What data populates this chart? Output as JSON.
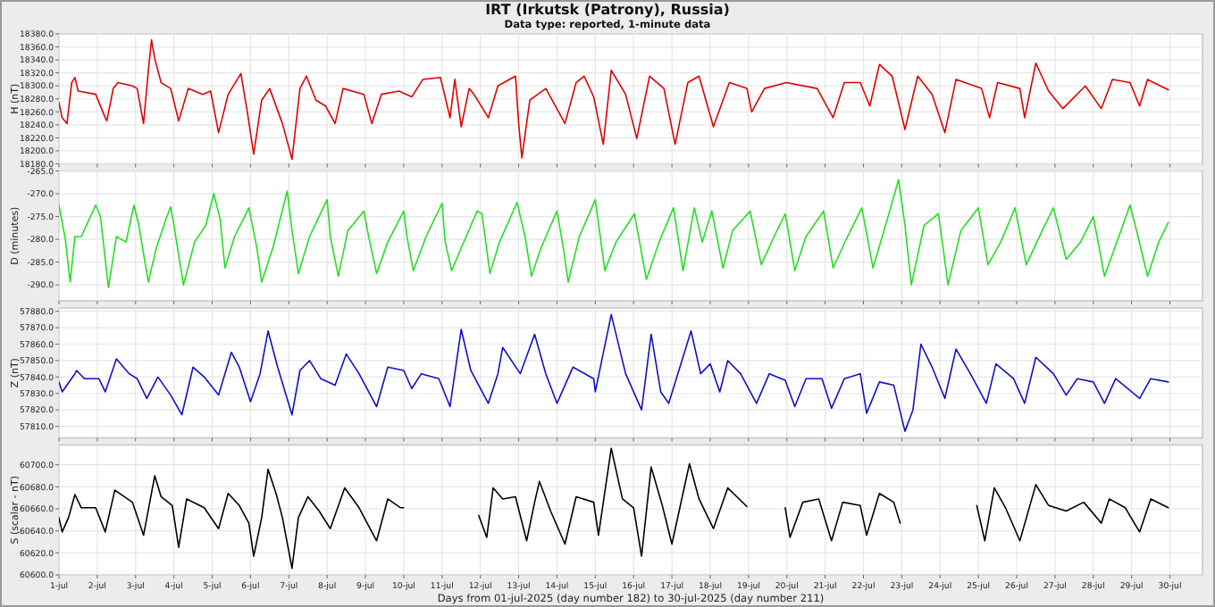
{
  "chart_data": [
    {
      "type": "line",
      "title": "IRT (Irkutsk (Patrony), Russia)",
      "subtitle": "Data type: reported, 1-minute data",
      "ylabel": "H (nT)",
      "color": "#e00000",
      "grid": true,
      "tick_labels": "y",
      "xlim": [
        "2025-07-01T00:00",
        "2025-07-30T20:24"
      ],
      "xticks": [
        {
          "value": "2025-07-01",
          "label": null
        },
        {
          "value": "2025-07-02",
          "label": null
        },
        {
          "value": "2025-07-03",
          "label": null
        },
        {
          "value": "2025-07-04",
          "label": null
        },
        {
          "value": "2025-07-05",
          "label": null
        },
        {
          "value": "2025-07-06",
          "label": null
        },
        {
          "value": "2025-07-07",
          "label": null
        },
        {
          "value": "2025-07-08",
          "label": null
        },
        {
          "value": "2025-07-09",
          "label": null
        },
        {
          "value": "2025-07-10",
          "label": null
        },
        {
          "value": "2025-07-11",
          "label": null
        },
        {
          "value": "2025-07-12",
          "label": null
        },
        {
          "value": "2025-07-13",
          "label": null
        },
        {
          "value": "2025-07-14",
          "label": null
        },
        {
          "value": "2025-07-15",
          "label": null
        },
        {
          "value": "2025-07-16",
          "label": null
        },
        {
          "value": "2025-07-17",
          "label": null
        },
        {
          "value": "2025-07-18",
          "label": null
        },
        {
          "value": "2025-07-19",
          "label": null
        },
        {
          "value": "2025-07-20",
          "label": null
        },
        {
          "value": "2025-07-21",
          "label": null
        },
        {
          "value": "2025-07-22",
          "label": null
        },
        {
          "value": "2025-07-23",
          "label": null
        },
        {
          "value": "2025-07-24",
          "label": null
        },
        {
          "value": "2025-07-25",
          "label": null
        },
        {
          "value": "2025-07-26",
          "label": null
        },
        {
          "value": "2025-07-27",
          "label": null
        },
        {
          "value": "2025-07-28",
          "label": null
        },
        {
          "value": "2025-07-29",
          "label": null
        },
        {
          "value": "2025-07-30",
          "label": null
        }
      ],
      "ylim": [
        18180,
        18380
      ],
      "yticks": [
        {
          "value": 18180,
          "label": "18180.0"
        },
        {
          "value": 18200,
          "label": "18200.0"
        },
        {
          "value": 18220,
          "label": "18220.0"
        },
        {
          "value": 18240,
          "label": "18240.0"
        },
        {
          "value": 18260,
          "label": "18260.0"
        },
        {
          "value": 18280,
          "label": "18280.0"
        },
        {
          "value": 18300,
          "label": "18300.0"
        },
        {
          "value": 18320,
          "label": "18320.0"
        },
        {
          "value": 18340,
          "label": "18340.0"
        },
        {
          "value": 18360,
          "label": "18360.0"
        },
        {
          "value": 18380,
          "label": "18380.0"
        }
      ],
      "x": [
        "2025-07-01T00:00",
        "2025-07-01T02:00",
        "2025-07-01T05:00",
        "2025-07-01T08:00",
        "2025-07-01T10:00",
        "2025-07-01T12:00",
        "2025-07-01T23:00",
        "2025-07-02T05:00",
        "2025-07-02T06:00",
        "2025-07-02T10:00",
        "2025-07-02T13:00",
        "2025-07-02T22:00",
        "2025-07-03T01:00",
        "2025-07-03T05:00",
        "2025-07-03T08:00",
        "2025-07-03T10:00",
        "2025-07-03T12:00",
        "2025-07-03T16:00",
        "2025-07-03T22:00",
        "2025-07-04T03:00",
        "2025-07-04T09:00",
        "2025-07-04T18:00",
        "2025-07-04T23:00",
        "2025-07-05T04:00",
        "2025-07-05T10:00",
        "2025-07-05T18:00",
        "2025-07-05T22:00",
        "2025-07-06T02:00",
        "2025-07-06T07:00",
        "2025-07-06T12:00",
        "2025-07-06T20:00",
        "2025-07-07T02:00",
        "2025-07-07T07:00",
        "2025-07-07T11:00",
        "2025-07-07T17:00",
        "2025-07-07T23:00",
        "2025-07-08T05:00",
        "2025-07-08T10:00",
        "2025-07-08T23:00",
        "2025-07-09T04:00",
        "2025-07-09T10:00",
        "2025-07-09T21:00",
        "2025-07-10T05:00",
        "2025-07-10T12:00",
        "2025-07-10T23:00",
        "2025-07-11T05:00",
        "2025-07-11T08:00",
        "2025-07-11T12:00",
        "2025-07-11T17:00",
        "2025-07-11T20:00",
        "2025-07-12T05:00",
        "2025-07-12T11:00",
        "2025-07-12T22:00",
        "2025-07-13T00:00",
        "2025-07-13T02:00",
        "2025-07-13T07:00",
        "2025-07-13T17:00",
        "2025-07-14T05:00",
        "2025-07-14T12:00",
        "2025-07-14T17:00",
        "2025-07-14T23:00",
        "2025-07-15T05:00",
        "2025-07-15T10:00",
        "2025-07-15T19:00",
        "2025-07-16T02:00",
        "2025-07-16T10:00",
        "2025-07-16T19:00",
        "2025-07-17T02:00",
        "2025-07-17T10:00",
        "2025-07-17T17:00",
        "2025-07-18T02:00",
        "2025-07-18T12:00",
        "2025-07-18T23:00",
        "2025-07-19T02:00",
        "2025-07-19T10:00",
        "2025-07-19T23:45",
        "2025-07-20T19:00",
        "2025-07-21T05:00",
        "2025-07-21T12:00",
        "2025-07-21T22:00",
        "2025-07-22T04:00",
        "2025-07-22T10:00",
        "2025-07-22T18:00",
        "2025-07-23T02:00",
        "2025-07-23T10:00",
        "2025-07-23T19:00",
        "2025-07-24T03:00",
        "2025-07-24T10:00",
        "2025-07-25T02:00",
        "2025-07-25T07:00",
        "2025-07-25T12:00",
        "2025-07-26T02:00",
        "2025-07-26T05:00",
        "2025-07-26T12:00",
        "2025-07-26T20:00",
        "2025-07-27T05:00",
        "2025-07-27T19:00",
        "2025-07-28T05:00",
        "2025-07-28T12:00",
        "2025-07-28T23:00",
        "2025-07-29T05:00",
        "2025-07-29T10:00",
        "2025-07-29T18:00",
        "2025-07-29T23:00"
      ],
      "values": [
        18274,
        18251,
        18242,
        18305,
        18313,
        18292,
        18287,
        18251,
        18246,
        18296,
        18305,
        18300,
        18296,
        18242,
        18324,
        18371,
        18342,
        18305,
        18296,
        18246,
        18296,
        18287,
        18292,
        18228,
        18287,
        18319,
        18260,
        18195,
        18278,
        18296,
        18242,
        18187,
        18296,
        18315,
        18278,
        18269,
        18242,
        18296,
        18287,
        18242,
        18287,
        18292,
        18283,
        18310,
        18313,
        18251,
        18310,
        18237,
        18296,
        18287,
        18251,
        18300,
        18315,
        18242,
        18189,
        18278,
        18296,
        18242,
        18305,
        18315,
        18283,
        18210,
        18324,
        18287,
        18219,
        18315,
        18296,
        18210,
        18305,
        18315,
        18237,
        18305,
        18296,
        18260,
        18296,
        18305,
        18296,
        18251,
        18305,
        18305,
        18269,
        18333,
        18315,
        18233,
        18315,
        18287,
        18228,
        18310,
        18296,
        18251,
        18305,
        18296,
        18251,
        18335,
        18292,
        18265,
        18300,
        18265,
        18310,
        18305,
        18269,
        18310,
        18300,
        18294
      ]
    },
    {
      "type": "line",
      "ylabel": "D (minutes)",
      "color": "#22e022",
      "grid": true,
      "tick_labels": "y",
      "xlim": [
        "2025-07-01T00:00",
        "2025-07-30T20:24"
      ],
      "xticks": [
        {
          "value": "2025-07-01",
          "label": null
        },
        {
          "value": "2025-07-02",
          "label": null
        },
        {
          "value": "2025-07-03",
          "label": null
        },
        {
          "value": "2025-07-04",
          "label": null
        },
        {
          "value": "2025-07-05",
          "label": null
        },
        {
          "value": "2025-07-06",
          "label": null
        },
        {
          "value": "2025-07-07",
          "label": null
        },
        {
          "value": "2025-07-08",
          "label": null
        },
        {
          "value": "2025-07-09",
          "label": null
        },
        {
          "value": "2025-07-10",
          "label": null
        },
        {
          "value": "2025-07-11",
          "label": null
        },
        {
          "value": "2025-07-12",
          "label": null
        },
        {
          "value": "2025-07-13",
          "label": null
        },
        {
          "value": "2025-07-14",
          "label": null
        },
        {
          "value": "2025-07-15",
          "label": null
        },
        {
          "value": "2025-07-16",
          "label": null
        },
        {
          "value": "2025-07-17",
          "label": null
        },
        {
          "value": "2025-07-18",
          "label": null
        },
        {
          "value": "2025-07-19",
          "label": null
        },
        {
          "value": "2025-07-20",
          "label": null
        },
        {
          "value": "2025-07-21",
          "label": null
        },
        {
          "value": "2025-07-22",
          "label": null
        },
        {
          "value": "2025-07-23",
          "label": null
        },
        {
          "value": "2025-07-24",
          "label": null
        },
        {
          "value": "2025-07-25",
          "label": null
        },
        {
          "value": "2025-07-26",
          "label": null
        },
        {
          "value": "2025-07-27",
          "label": null
        },
        {
          "value": "2025-07-28",
          "label": null
        },
        {
          "value": "2025-07-29",
          "label": null
        },
        {
          "value": "2025-07-30",
          "label": null
        }
      ],
      "ylim": [
        -293.5,
        -265
      ],
      "yticks": [
        {
          "value": -290,
          "label": "-290.0"
        },
        {
          "value": -285,
          "label": "-285.0"
        },
        {
          "value": -280,
          "label": "-280.0"
        },
        {
          "value": -275,
          "label": "-275.0"
        },
        {
          "value": -270,
          "label": "-270.0"
        },
        {
          "value": -265,
          "label": "-265.0"
        }
      ],
      "x": [
        "2025-07-01T00:00",
        "2025-07-01T04:00",
        "2025-07-01T07:00",
        "2025-07-01T10:00",
        "2025-07-01T14:00",
        "2025-07-01T23:00",
        "2025-07-02T02:00",
        "2025-07-02T07:00",
        "2025-07-02T12:00",
        "2025-07-02T18:00",
        "2025-07-02T23:00",
        "2025-07-03T02:00",
        "2025-07-03T08:00",
        "2025-07-03T13:00",
        "2025-07-03T19:00",
        "2025-07-03T22:00",
        "2025-07-04T00:00",
        "2025-07-04T06:00",
        "2025-07-04T13:00",
        "2025-07-04T20:00",
        "2025-07-05T01:00",
        "2025-07-05T05:00",
        "2025-07-05T08:00",
        "2025-07-05T14:00",
        "2025-07-05T23:00",
        "2025-07-06T04:00",
        "2025-07-06T07:00",
        "2025-07-06T14:00",
        "2025-07-06T23:00",
        "2025-07-07T02:00",
        "2025-07-07T06:00",
        "2025-07-07T13:00",
        "2025-07-08T00:00",
        "2025-07-08T02:00",
        "2025-07-08T07:00",
        "2025-07-08T13:00",
        "2025-07-08T23:00",
        "2025-07-09T02:00",
        "2025-07-09T07:00",
        "2025-07-09T14:00",
        "2025-07-10T00:00",
        "2025-07-10T02:00",
        "2025-07-10T06:00",
        "2025-07-10T14:00",
        "2025-07-11T00:00",
        "2025-07-11T02:00",
        "2025-07-11T06:00",
        "2025-07-11T12:00",
        "2025-07-11T22:00",
        "2025-07-12T01:00",
        "2025-07-12T06:00",
        "2025-07-12T12:00",
        "2025-07-12T23:00",
        "2025-07-13T04:00",
        "2025-07-13T08:00",
        "2025-07-13T14:00",
        "2025-07-14T00:00",
        "2025-07-14T04:00",
        "2025-07-14T07:00",
        "2025-07-14T14:00",
        "2025-07-15T00:00",
        "2025-07-15T06:00",
        "2025-07-15T13:00",
        "2025-07-16T00:30",
        "2025-07-16T08:00",
        "2025-07-16T16:00",
        "2025-07-17T01:00",
        "2025-07-17T07:00",
        "2025-07-17T14:00",
        "2025-07-17T19:00",
        "2025-07-18T01:00",
        "2025-07-18T08:00",
        "2025-07-18T14:00",
        "2025-07-19T01:00",
        "2025-07-19T08:00",
        "2025-07-19T16:00",
        "2025-07-19T23:00",
        "2025-07-20T05:00",
        "2025-07-20T12:00",
        "2025-07-20T23:00",
        "2025-07-21T05:00",
        "2025-07-21T14:00",
        "2025-07-21T23:00",
        "2025-07-22T06:00",
        "2025-07-22T17:00",
        "2025-07-22T22:00",
        "2025-07-23T02:00",
        "2025-07-23T06:00",
        "2025-07-23T14:00",
        "2025-07-23T23:00",
        "2025-07-24T05:00",
        "2025-07-24T13:00",
        "2025-07-25T00:00",
        "2025-07-25T06:00",
        "2025-07-25T14:00",
        "2025-07-25T23:00",
        "2025-07-26T06:00",
        "2025-07-26T16:00",
        "2025-07-26T23:00",
        "2025-07-27T07:00",
        "2025-07-27T16:00",
        "2025-07-28T00:00",
        "2025-07-28T07:00",
        "2025-07-28T16:00",
        "2025-07-28T23:00",
        "2025-07-29T04:00",
        "2025-07-29T10:00",
        "2025-07-29T17:00",
        "2025-07-29T23:00"
      ],
      "values": [
        -272.5,
        -280,
        -289.4,
        -279.4,
        -279.4,
        -272.5,
        -275,
        -290.6,
        -279.4,
        -280.6,
        -272.5,
        -276.9,
        -289.4,
        -281.9,
        -275.6,
        -272.9,
        -276.9,
        -290,
        -280.6,
        -276.9,
        -270,
        -275.6,
        -286.3,
        -279.4,
        -273.1,
        -281.9,
        -289.4,
        -281.9,
        -269.4,
        -278.1,
        -287.5,
        -279.4,
        -271.3,
        -279.4,
        -288.1,
        -278.1,
        -273.8,
        -279.4,
        -287.5,
        -280.6,
        -273.8,
        -279.4,
        -286.9,
        -279.4,
        -272.1,
        -280.6,
        -286.9,
        -281.9,
        -273.8,
        -274.4,
        -287.5,
        -280.6,
        -271.9,
        -279.4,
        -288.1,
        -281.9,
        -273.8,
        -281.9,
        -289.4,
        -279.4,
        -271.3,
        -286.9,
        -280.6,
        -274.4,
        -288.8,
        -280.6,
        -273.1,
        -286.9,
        -273.1,
        -280.6,
        -273.8,
        -286.3,
        -278.1,
        -273.8,
        -285.6,
        -279.4,
        -274.4,
        -286.9,
        -279.4,
        -273.8,
        -286.3,
        -279.4,
        -273.1,
        -286.3,
        -273.1,
        -266.9,
        -276.9,
        -290,
        -276.9,
        -274.4,
        -290,
        -278.1,
        -273.1,
        -285.6,
        -280.6,
        -273.1,
        -285.6,
        -278.1,
        -273.1,
        -284.4,
        -280.6,
        -275,
        -288.1,
        -279.4,
        -272.5,
        -279.4,
        -288.1,
        -280.6,
        -276.3
      ]
    },
    {
      "type": "line",
      "ylabel": "Z (nT)",
      "color": "#1010c8",
      "grid": true,
      "tick_labels": "y",
      "xlim": [
        "2025-07-01T00:00",
        "2025-07-30T20:24"
      ],
      "xticks": [
        {
          "value": "2025-07-01",
          "label": null
        },
        {
          "value": "2025-07-02",
          "label": null
        },
        {
          "value": "2025-07-03",
          "label": null
        },
        {
          "value": "2025-07-04",
          "label": null
        },
        {
          "value": "2025-07-05",
          "label": null
        },
        {
          "value": "2025-07-06",
          "label": null
        },
        {
          "value": "2025-07-07",
          "label": null
        },
        {
          "value": "2025-07-08",
          "label": null
        },
        {
          "value": "2025-07-09",
          "label": null
        },
        {
          "value": "2025-07-10",
          "label": null
        },
        {
          "value": "2025-07-11",
          "label": null
        },
        {
          "value": "2025-07-12",
          "label": null
        },
        {
          "value": "2025-07-13",
          "label": null
        },
        {
          "value": "2025-07-14",
          "label": null
        },
        {
          "value": "2025-07-15",
          "label": null
        },
        {
          "value": "2025-07-16",
          "label": null
        },
        {
          "value": "2025-07-17",
          "label": null
        },
        {
          "value": "2025-07-18",
          "label": null
        },
        {
          "value": "2025-07-19",
          "label": null
        },
        {
          "value": "2025-07-20",
          "label": null
        },
        {
          "value": "2025-07-21",
          "label": null
        },
        {
          "value": "2025-07-22",
          "label": null
        },
        {
          "value": "2025-07-23",
          "label": null
        },
        {
          "value": "2025-07-24",
          "label": null
        },
        {
          "value": "2025-07-25",
          "label": null
        },
        {
          "value": "2025-07-26",
          "label": null
        },
        {
          "value": "2025-07-27",
          "label": null
        },
        {
          "value": "2025-07-28",
          "label": null
        },
        {
          "value": "2025-07-29",
          "label": null
        },
        {
          "value": "2025-07-30",
          "label": null
        }
      ],
      "ylim": [
        57803,
        57882
      ],
      "yticks": [
        {
          "value": 57810,
          "label": "57810.0"
        },
        {
          "value": 57820,
          "label": "57820.0"
        },
        {
          "value": 57830,
          "label": "57830.0"
        },
        {
          "value": 57840,
          "label": "57840.0"
        },
        {
          "value": 57850,
          "label": "57850.0"
        },
        {
          "value": 57860,
          "label": "57860.0"
        },
        {
          "value": 57870,
          "label": "57870.0"
        },
        {
          "value": 57880,
          "label": "57880.0"
        }
      ],
      "x": [
        "2025-07-01T00:00",
        "2025-07-01T02:00",
        "2025-07-01T10:00",
        "2025-07-01T11:00",
        "2025-07-01T16:00",
        "2025-07-02T01:00",
        "2025-07-02T05:00",
        "2025-07-02T12:00",
        "2025-07-02T20:00",
        "2025-07-03T01:00",
        "2025-07-03T07:00",
        "2025-07-03T14:00",
        "2025-07-03T22:00",
        "2025-07-04T05:00",
        "2025-07-04T12:00",
        "2025-07-04T19:00",
        "2025-07-05T04:00",
        "2025-07-05T12:00",
        "2025-07-05T17:00",
        "2025-07-06T00:00",
        "2025-07-06T06:00",
        "2025-07-06T11:00",
        "2025-07-06T17:00",
        "2025-07-07T02:00",
        "2025-07-07T07:00",
        "2025-07-07T13:00",
        "2025-07-07T20:00",
        "2025-07-08T05:00",
        "2025-07-08T12:00",
        "2025-07-08T20:00",
        "2025-07-09T07:00",
        "2025-07-09T14:00",
        "2025-07-10T00:00",
        "2025-07-10T05:00",
        "2025-07-10T11:00",
        "2025-07-10T22:00",
        "2025-07-11T05:00",
        "2025-07-11T12:00",
        "2025-07-11T18:00",
        "2025-07-12T05:00",
        "2025-07-12T11:00",
        "2025-07-12T14:00",
        "2025-07-13T01:00",
        "2025-07-13T10:00",
        "2025-07-13T17:00",
        "2025-07-14T00:00",
        "2025-07-14T10:00",
        "2025-07-14T23:00",
        "2025-07-15T00:00",
        "2025-07-15T10:00",
        "2025-07-15T19:00",
        "2025-07-16T05:00",
        "2025-07-16T11:00",
        "2025-07-16T17:00",
        "2025-07-16T22:00",
        "2025-07-17T12:00",
        "2025-07-17T18:00",
        "2025-07-18T00:00",
        "2025-07-18T06:00",
        "2025-07-18T11:00",
        "2025-07-18T19:00",
        "2025-07-19T05:00",
        "2025-07-19T13:00",
        "2025-07-19T23:00",
        "2025-07-20T05:00",
        "2025-07-20T12:00",
        "2025-07-20T22:00",
        "2025-07-21T04:00",
        "2025-07-21T12:00",
        "2025-07-21T22:00",
        "2025-07-22T02:00",
        "2025-07-22T10:00",
        "2025-07-22T19:00",
        "2025-07-23T02:00",
        "2025-07-23T07:00",
        "2025-07-23T12:00",
        "2025-07-23T19:00",
        "2025-07-24T03:00",
        "2025-07-24T10:00",
        "2025-07-24T19:00",
        "2025-07-25T05:00",
        "2025-07-25T11:00",
        "2025-07-25T22:00",
        "2025-07-26T05:00",
        "2025-07-26T12:00",
        "2025-07-26T23:00",
        "2025-07-27T07:00",
        "2025-07-27T14:00",
        "2025-07-28T00:00",
        "2025-07-28T07:00",
        "2025-07-28T14:00",
        "2025-07-29T05:00",
        "2025-07-29T12:00",
        "2025-07-29T23:00"
      ],
      "values": [
        57837,
        57831,
        57842,
        57844,
        57839,
        57839,
        57831,
        57851,
        57842,
        57839,
        57827,
        57840,
        57829,
        57817,
        57846,
        57840,
        57829,
        57855,
        57846,
        57825,
        57842,
        57868,
        57846,
        57817,
        57844,
        57850,
        57839,
        57835,
        57854,
        57842,
        57822,
        57846,
        57844,
        57833,
        57842,
        57839,
        57822,
        57869,
        57844,
        57824,
        57842,
        57858,
        57842,
        57866,
        57842,
        57824,
        57846,
        57839,
        57831,
        57878,
        57842,
        57820,
        57866,
        57831,
        57824,
        57868,
        57842,
        57848,
        57831,
        57850,
        57842,
        57824,
        57842,
        57838,
        57822,
        57839,
        57839,
        57821,
        57839,
        57842,
        57818,
        57837,
        57835,
        57807,
        57820,
        57860,
        57846,
        57827,
        57857,
        57842,
        57824,
        57848,
        57839,
        57824,
        57852,
        57842,
        57829,
        57839,
        57837,
        57824,
        57839,
        57827,
        57839,
        57837
      ]
    },
    {
      "type": "line",
      "ylabel": "S (scalar - nT)",
      "xlabel": "Days from 01-jul-2025 (day number 182) to 30-jul-2025 (day number 211)",
      "color": "#000000",
      "grid": true,
      "xlim": [
        "2025-07-01T00:00",
        "2025-07-30T20:24"
      ],
      "xticks": [
        {
          "value": "2025-07-01",
          "label": "1-jul"
        },
        {
          "value": "2025-07-02",
          "label": "2-jul"
        },
        {
          "value": "2025-07-03",
          "label": "3-jul"
        },
        {
          "value": "2025-07-04",
          "label": "4-jul"
        },
        {
          "value": "2025-07-05",
          "label": "5-jul"
        },
        {
          "value": "2025-07-06",
          "label": "6-jul"
        },
        {
          "value": "2025-07-07",
          "label": "7-jul"
        },
        {
          "value": "2025-07-08",
          "label": "8-jul"
        },
        {
          "value": "2025-07-09",
          "label": "9-jul"
        },
        {
          "value": "2025-07-10",
          "label": "10-jul"
        },
        {
          "value": "2025-07-11",
          "label": "11-jul"
        },
        {
          "value": "2025-07-12",
          "label": "12-jul"
        },
        {
          "value": "2025-07-13",
          "label": "13-jul"
        },
        {
          "value": "2025-07-14",
          "label": "14-jul"
        },
        {
          "value": "2025-07-15",
          "label": "15-jul"
        },
        {
          "value": "2025-07-16",
          "label": "16-jul"
        },
        {
          "value": "2025-07-17",
          "label": "17-jul"
        },
        {
          "value": "2025-07-18",
          "label": "18-jul"
        },
        {
          "value": "2025-07-19",
          "label": "19-jul"
        },
        {
          "value": "2025-07-20",
          "label": "20-jul"
        },
        {
          "value": "2025-07-21",
          "label": "21-jul"
        },
        {
          "value": "2025-07-22",
          "label": "22-jul"
        },
        {
          "value": "2025-07-23",
          "label": "23-jul"
        },
        {
          "value": "2025-07-24",
          "label": "24-jul"
        },
        {
          "value": "2025-07-25",
          "label": "25-jul"
        },
        {
          "value": "2025-07-26",
          "label": "26-jul"
        },
        {
          "value": "2025-07-27",
          "label": "27-jul"
        },
        {
          "value": "2025-07-28",
          "label": "28-jul"
        },
        {
          "value": "2025-07-29",
          "label": "29-jul"
        },
        {
          "value": "2025-07-30",
          "label": "30-jul"
        }
      ],
      "ylim": [
        60600,
        60718
      ],
      "yticks": [
        {
          "value": 60600,
          "label": "60600.0"
        },
        {
          "value": 60620,
          "label": "60620.0"
        },
        {
          "value": 60640,
          "label": "60640.0"
        },
        {
          "value": 60660,
          "label": "60660.0"
        },
        {
          "value": 60680,
          "label": "60680.0"
        },
        {
          "value": 60700,
          "label": "60700.0"
        }
      ],
      "x": [
        "2025-07-01T00:00",
        "2025-07-01T02:00",
        "2025-07-01T06:00",
        "2025-07-01T10:00",
        "2025-07-01T14:00",
        "2025-07-01T23:00",
        "2025-07-02T05:00",
        "2025-07-02T11:00",
        "2025-07-02T22:00",
        "2025-07-03T05:00",
        "2025-07-03T12:00",
        "2025-07-03T16:00",
        "2025-07-03T23:00",
        "2025-07-04T03:00",
        "2025-07-04T08:00",
        "2025-07-04T19:00",
        "2025-07-05T04:00",
        "2025-07-05T10:00",
        "2025-07-05T17:00",
        "2025-07-05T23:00",
        "2025-07-06T02:00",
        "2025-07-06T07:00",
        "2025-07-06T11:00",
        "2025-07-06T16:00",
        "2025-07-06T20:00",
        "2025-07-07T02:00",
        "2025-07-07T06:00",
        "2025-07-07T12:00",
        "2025-07-07T19:00",
        "2025-07-08T02:00",
        "2025-07-08T11:00",
        "2025-07-08T20:00",
        "2025-07-09T07:00",
        "2025-07-09T14:00",
        "2025-07-09T22:00",
        "2025-07-10T00:00",
        "2025-07-11T00:00",
        "2025-07-11T23:00",
        "2025-07-12T04:00",
        "2025-07-12T08:00",
        "2025-07-12T14:00",
        "2025-07-12T22:00",
        "2025-07-13T05:00",
        "2025-07-13T10:00",
        "2025-07-13T13:00",
        "2025-07-13T20:00",
        "2025-07-14T05:00",
        "2025-07-14T12:00",
        "2025-07-14T23:00",
        "2025-07-15T02:00",
        "2025-07-15T10:00",
        "2025-07-15T17:00",
        "2025-07-16T00:00",
        "2025-07-16T05:00",
        "2025-07-16T11:00",
        "2025-07-16T18:00",
        "2025-07-17T00:00",
        "2025-07-17T11:00",
        "2025-07-17T17:00",
        "2025-07-18T02:00",
        "2025-07-18T11:00",
        "2025-07-18T23:00",
        "2025-07-19T12:00",
        "2025-07-19T23:00",
        "2025-07-20T02:00",
        "2025-07-20T10:00",
        "2025-07-20T20:00",
        "2025-07-21T04:00",
        "2025-07-21T11:00",
        "2025-07-21T22:00",
        "2025-07-22T02:00",
        "2025-07-22T10:00",
        "2025-07-22T19:00",
        "2025-07-22T23:00",
        "2025-07-24T00:00",
        "2025-07-24T23:00",
        "2025-07-25T04:00",
        "2025-07-25T10:00",
        "2025-07-25T17:00",
        "2025-07-26T02:00",
        "2025-07-26T12:00",
        "2025-07-26T20:00",
        "2025-07-27T07:00",
        "2025-07-27T18:00",
        "2025-07-28T05:00",
        "2025-07-28T10:00",
        "2025-07-28T20:00",
        "2025-07-29T05:00",
        "2025-07-29T12:00",
        "2025-07-29T23:00"
      ],
      "values": [
        60652,
        60639,
        60652,
        60673,
        60661,
        60661,
        60639,
        60677,
        60666,
        60636,
        60690,
        60671,
        60663,
        60625,
        60669,
        60661,
        60642,
        60674,
        60663,
        60647,
        60617,
        60652,
        60696,
        60674,
        60652,
        60606,
        60652,
        60671,
        60658,
        60642,
        60679,
        60661,
        60631,
        60669,
        60661,
        60661,
        null,
        60654,
        60634,
        60679,
        60669,
        60671,
        60631,
        60666,
        60685,
        60658,
        60628,
        60671,
        60666,
        60636,
        60715,
        60669,
        60661,
        60617,
        60698,
        60663,
        60628,
        60701,
        60669,
        60642,
        60679,
        60662,
        null,
        60661,
        60634,
        60666,
        60669,
        60631,
        60666,
        60663,
        60636,
        60674,
        60666,
        60647,
        null,
        60663,
        60631,
        60679,
        60661,
        60631,
        60682,
        60663,
        60658,
        60666,
        60647,
        60669,
        60661,
        60639,
        60669,
        60661
      ]
    }
  ]
}
